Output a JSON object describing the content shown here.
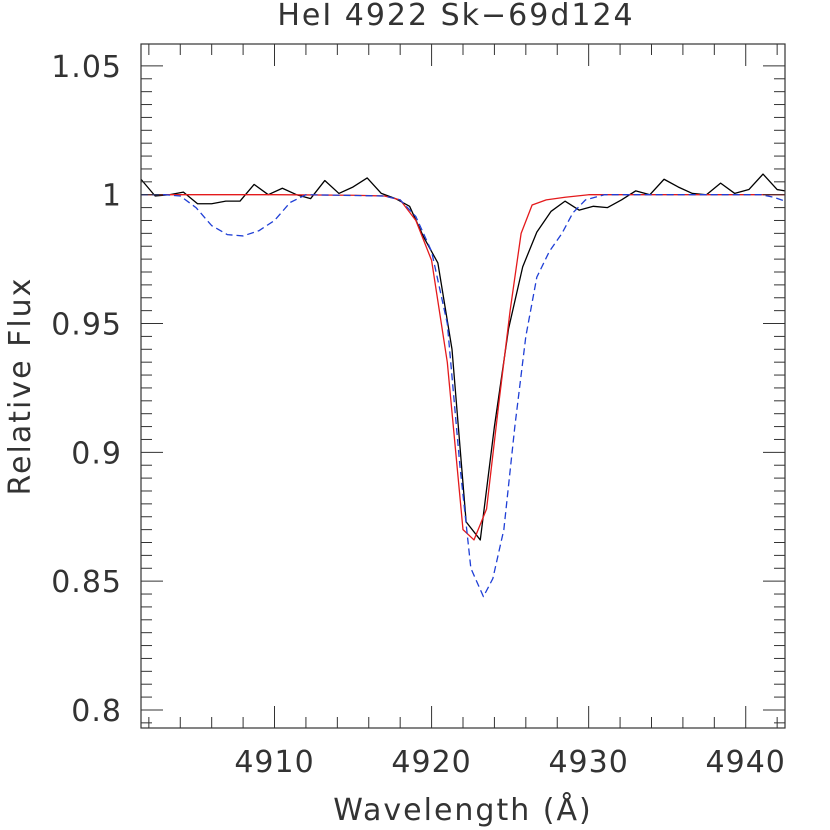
{
  "chart_data": {
    "type": "line",
    "title": "HeI 4922 Sk−69d124",
    "xlabel": "Wavelength (Å)",
    "ylabel": "Relative Flux",
    "xlim": [
      4901.5,
      4942.5
    ],
    "ylim": [
      0.793,
      1.0585
    ],
    "x_ticks": [
      4910,
      4920,
      4930,
      4940
    ],
    "x_tick_labels": [
      "4910",
      "4920",
      "4930",
      "4940"
    ],
    "y_ticks": [
      0.8,
      0.85,
      0.9,
      0.95,
      1.0,
      1.05
    ],
    "y_tick_labels": [
      "0.8",
      "0.85",
      "0.9",
      "0.95",
      "1",
      "1.05"
    ],
    "grid": false,
    "series": [
      {
        "color": "#000000",
        "dash": "solid",
        "points": [
          [
            4901.5,
            1.006
          ],
          [
            4902.4,
            0.9995
          ],
          [
            4903.3,
            1.0
          ],
          [
            4904.2,
            1.001
          ],
          [
            4905.1,
            0.9965
          ],
          [
            4906.0,
            0.9965
          ],
          [
            4906.9,
            0.9975
          ],
          [
            4907.8,
            0.9975
          ],
          [
            4908.7,
            1.004
          ],
          [
            4909.6,
            1.0
          ],
          [
            4910.5,
            1.0025
          ],
          [
            4911.4,
            1.0
          ],
          [
            4912.3,
            0.9985
          ],
          [
            4913.2,
            1.0055
          ],
          [
            4914.1,
            1.0005
          ],
          [
            4915.0,
            1.003
          ],
          [
            4915.9,
            1.0065
          ],
          [
            4916.8,
            1.0005
          ],
          [
            4917.7,
            0.9985
          ],
          [
            4918.6,
            0.9955
          ],
          [
            4919.5,
            0.9835
          ],
          [
            4920.4,
            0.9735
          ],
          [
            4921.3,
            0.94
          ],
          [
            4922.2,
            0.873
          ],
          [
            4923.1,
            0.866
          ],
          [
            4924.0,
            0.91
          ],
          [
            4924.9,
            0.948
          ],
          [
            4925.8,
            0.972
          ],
          [
            4926.7,
            0.9855
          ],
          [
            4927.6,
            0.9935
          ],
          [
            4928.5,
            0.9975
          ],
          [
            4929.4,
            0.994
          ],
          [
            4930.3,
            0.9955
          ],
          [
            4931.2,
            0.995
          ],
          [
            4932.1,
            0.998
          ],
          [
            4933.0,
            1.0015
          ],
          [
            4933.9,
            1.0
          ],
          [
            4934.8,
            1.006
          ],
          [
            4935.7,
            1.003
          ],
          [
            4936.6,
            1.0005
          ],
          [
            4937.5,
            1.0
          ],
          [
            4938.4,
            1.0045
          ],
          [
            4939.3,
            1.0005
          ],
          [
            4940.2,
            1.002
          ],
          [
            4941.1,
            1.008
          ],
          [
            4942.0,
            1.002
          ],
          [
            4942.5,
            1.0015
          ]
        ]
      },
      {
        "color": "#e41a1c",
        "dash": "solid",
        "points": [
          [
            4901.5,
            1.0
          ],
          [
            4910.0,
            1.0
          ],
          [
            4915.0,
            0.9998
          ],
          [
            4917.0,
            0.9995
          ],
          [
            4918.0,
            0.998
          ],
          [
            4919.0,
            0.99
          ],
          [
            4920.0,
            0.9745
          ],
          [
            4921.0,
            0.935
          ],
          [
            4922.0,
            0.87
          ],
          [
            4922.7,
            0.866
          ],
          [
            4923.5,
            0.878
          ],
          [
            4924.3,
            0.92
          ],
          [
            4925.0,
            0.955
          ],
          [
            4925.7,
            0.985
          ],
          [
            4926.4,
            0.996
          ],
          [
            4927.3,
            0.998
          ],
          [
            4928.5,
            0.999
          ],
          [
            4930.0,
            1.0
          ],
          [
            4942.5,
            1.0
          ]
        ]
      },
      {
        "color": "#1f3fd6",
        "dash": "dashed",
        "points": [
          [
            4901.5,
            1.0
          ],
          [
            4903.0,
            1.0
          ],
          [
            4904.0,
            0.9995
          ],
          [
            4905.0,
            0.995
          ],
          [
            4906.0,
            0.988
          ],
          [
            4907.0,
            0.9845
          ],
          [
            4908.0,
            0.984
          ],
          [
            4909.0,
            0.986
          ],
          [
            4910.0,
            0.99
          ],
          [
            4911.0,
            0.997
          ],
          [
            4912.0,
            1.0
          ],
          [
            4917.0,
            0.9995
          ],
          [
            4918.0,
            0.998
          ],
          [
            4919.0,
            0.9915
          ],
          [
            4920.0,
            0.978
          ],
          [
            4921.0,
            0.95
          ],
          [
            4921.8,
            0.895
          ],
          [
            4922.5,
            0.855
          ],
          [
            4923.3,
            0.844
          ],
          [
            4923.9,
            0.851
          ],
          [
            4924.6,
            0.87
          ],
          [
            4925.3,
            0.91
          ],
          [
            4926.0,
            0.945
          ],
          [
            4926.7,
            0.968
          ],
          [
            4927.5,
            0.978
          ],
          [
            4928.3,
            0.985
          ],
          [
            4929.0,
            0.993
          ],
          [
            4929.8,
            0.998
          ],
          [
            4931.0,
            1.0
          ],
          [
            4941.0,
            1.0
          ],
          [
            4941.8,
            0.999
          ],
          [
            4942.5,
            0.9975
          ]
        ]
      }
    ]
  }
}
